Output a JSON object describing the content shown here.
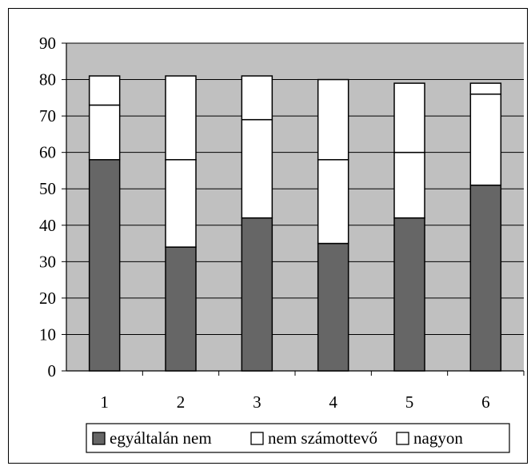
{
  "chart_data": {
    "type": "bar",
    "stacked": true,
    "categories": [
      "1",
      "2",
      "3",
      "4",
      "5",
      "6"
    ],
    "series": [
      {
        "name": "egyáltalán nem",
        "values": [
          58,
          34,
          42,
          35,
          42,
          51
        ],
        "color": "#666666"
      },
      {
        "name": "nem számottevő",
        "values": [
          15,
          24,
          27,
          23,
          18,
          25
        ],
        "color": "#ffffff"
      },
      {
        "name": "nagyon",
        "values": [
          8,
          23,
          12,
          22,
          19,
          3
        ],
        "color": "#ffffff"
      }
    ],
    "ylim": [
      0,
      90
    ],
    "yticks": [
      "0",
      "10",
      "20",
      "30",
      "40",
      "50",
      "60",
      "70",
      "80",
      "90"
    ],
    "grid": true,
    "plot_background": "#c0c0c0",
    "legend_position": "bottom"
  }
}
